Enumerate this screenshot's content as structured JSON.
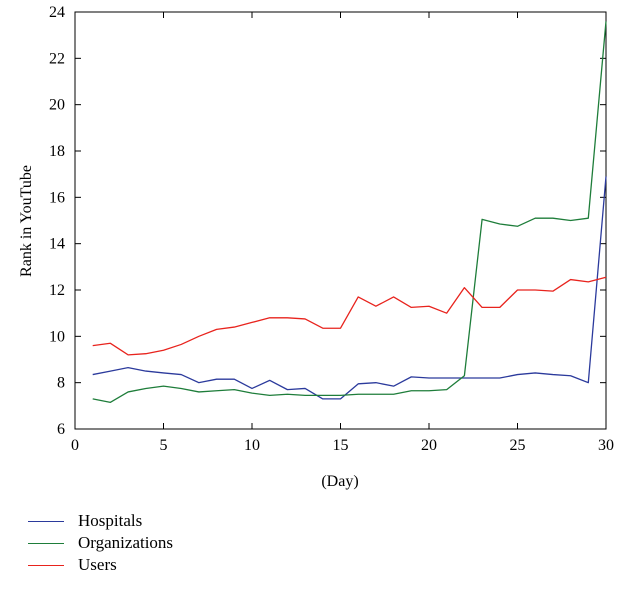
{
  "chart_data": {
    "type": "line",
    "title": "",
    "xlabel": "(Day)",
    "ylabel": "Rank in YouTube",
    "xlim": [
      0,
      30
    ],
    "ylim": [
      6,
      24
    ],
    "xticks": [
      0,
      5,
      10,
      15,
      20,
      25,
      30
    ],
    "yticks": [
      6,
      8,
      10,
      12,
      14,
      16,
      18,
      20,
      22,
      24
    ],
    "grid": false,
    "legend_position": "bottom-left, below plot",
    "x": [
      1,
      2,
      3,
      4,
      5,
      6,
      7,
      8,
      9,
      10,
      11,
      12,
      13,
      14,
      15,
      16,
      17,
      18,
      19,
      20,
      21,
      22,
      23,
      24,
      25,
      26,
      27,
      28,
      29,
      30
    ],
    "series": [
      {
        "name": "Hospitals",
        "color": "#2b3a9c",
        "values": [
          8.35,
          8.5,
          8.65,
          8.5,
          8.42,
          8.35,
          8.0,
          8.15,
          8.15,
          7.75,
          8.1,
          7.7,
          7.75,
          7.3,
          7.3,
          7.95,
          8.0,
          7.85,
          8.25,
          8.2,
          8.2,
          8.2,
          8.2,
          8.2,
          8.35,
          8.42,
          8.35,
          8.3,
          8.0,
          16.9
        ]
      },
      {
        "name": "Organizations",
        "color": "#1e7d3a",
        "values": [
          7.3,
          7.15,
          7.6,
          7.75,
          7.85,
          7.75,
          7.6,
          7.65,
          7.7,
          7.55,
          7.45,
          7.5,
          7.45,
          7.45,
          7.45,
          7.5,
          7.5,
          7.5,
          7.65,
          7.65,
          7.7,
          8.3,
          15.05,
          14.85,
          14.75,
          15.1,
          15.1,
          15.0,
          15.1,
          23.6
        ]
      },
      {
        "name": "Users",
        "color": "#e8231d",
        "values": [
          9.6,
          9.7,
          9.2,
          9.25,
          9.4,
          9.65,
          10.0,
          10.3,
          10.4,
          10.6,
          10.8,
          10.8,
          10.75,
          10.35,
          10.35,
          11.7,
          11.3,
          11.7,
          11.25,
          11.3,
          11.0,
          12.1,
          11.25,
          11.25,
          12.0,
          12.0,
          11.95,
          12.45,
          12.35,
          12.55
        ]
      }
    ]
  }
}
